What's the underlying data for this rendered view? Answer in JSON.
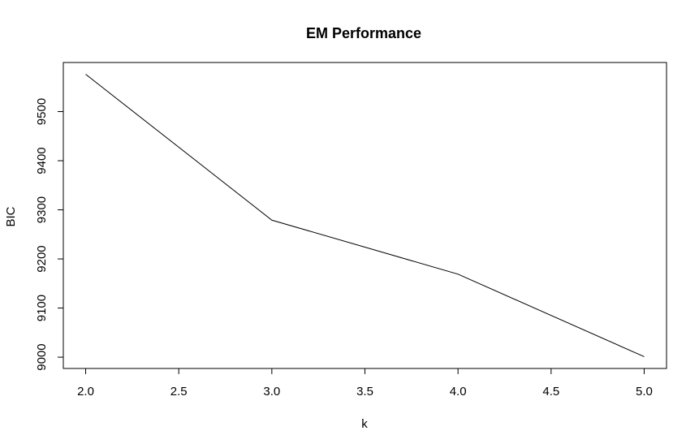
{
  "chart_data": {
    "type": "line",
    "title": "EM Performance",
    "xlabel": "k",
    "ylabel": "BIC",
    "x": [
      2,
      3,
      4,
      5
    ],
    "series": [
      {
        "values": [
          9576,
          9279,
          9169,
          9001
        ]
      }
    ],
    "xlim": [
      1.88,
      5.12
    ],
    "ylim": [
      8977,
      9600
    ],
    "xticks": [
      2.0,
      2.5,
      3.0,
      3.5,
      4.0,
      4.5,
      5.0
    ],
    "xtick_labels": [
      "2.0",
      "2.5",
      "3.0",
      "3.5",
      "4.0",
      "4.5",
      "5.0"
    ],
    "yticks": [
      9000,
      9100,
      9200,
      9300,
      9400,
      9500
    ],
    "ytick_labels": [
      "9000",
      "9100",
      "9200",
      "9300",
      "9400",
      "9500"
    ],
    "grid": false,
    "line_color": "#000000"
  }
}
